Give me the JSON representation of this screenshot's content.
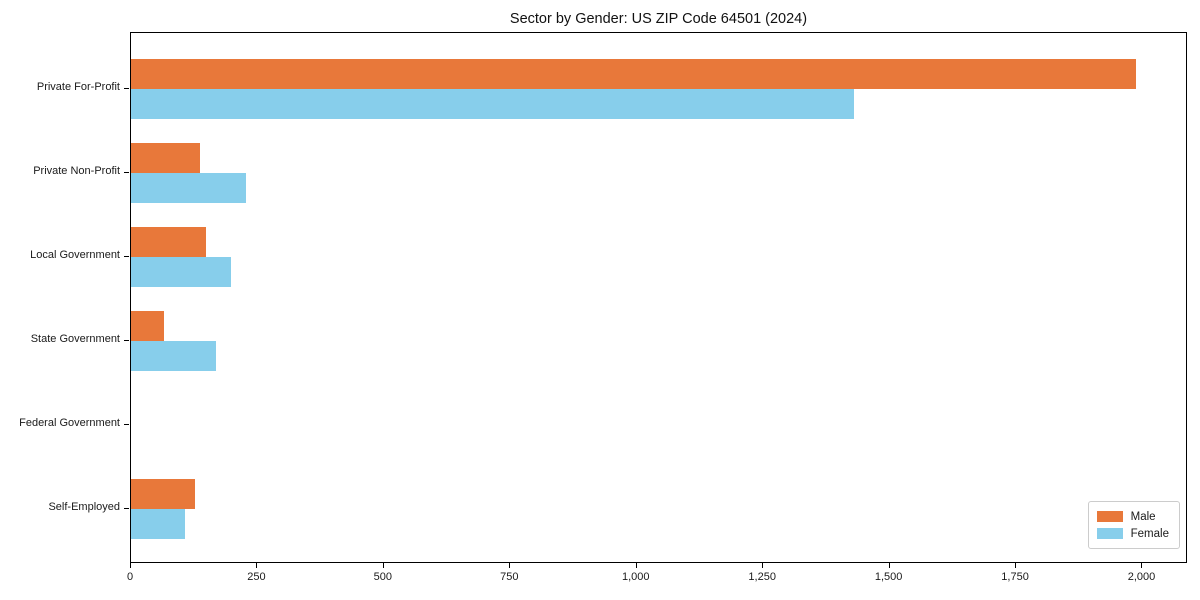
{
  "title": "Sector by Gender: US ZIP Code 64501 (2024)",
  "chart_data": {
    "type": "bar",
    "orientation": "horizontal",
    "title": "Sector by Gender: US ZIP Code 64501 (2024)",
    "categories": [
      "Private For-Profit",
      "Private Non-Profit",
      "Local Government",
      "State Government",
      "Federal Government",
      "Self-Employed"
    ],
    "series": [
      {
        "name": "Male",
        "color": "#e8783a",
        "values": [
          1987,
          136,
          149,
          65,
          0,
          127
        ]
      },
      {
        "name": "Female",
        "color": "#87ceeb",
        "values": [
          1429,
          227,
          198,
          168,
          0,
          106
        ]
      }
    ],
    "xlabel": "",
    "ylabel": "",
    "xlim": [
      0,
      2090
    ],
    "xticks": [
      0,
      250,
      500,
      750,
      1000,
      1250,
      1500,
      1750,
      2000
    ],
    "xtick_labels": [
      "0",
      "250",
      "500",
      "750",
      "1,000",
      "1,250",
      "1,500",
      "1,750",
      "2,000"
    ],
    "grid": false,
    "legend_position": "lower right"
  }
}
